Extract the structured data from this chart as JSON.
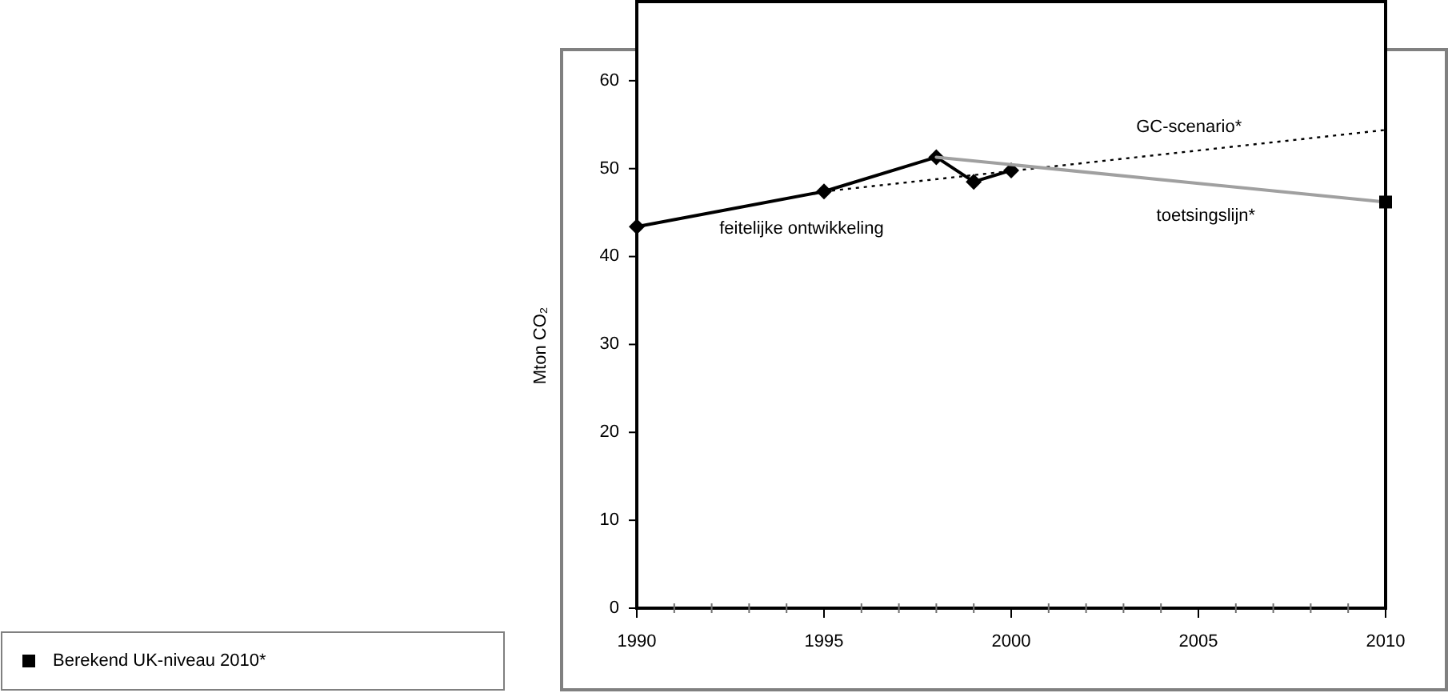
{
  "chart_data": {
    "type": "line",
    "ylabel": "Mton CO₂",
    "xlim": [
      1990,
      2010
    ],
    "xticks": [
      1990,
      {
        "value": 1991,
        "label": null
      },
      {
        "value": 1992,
        "label": null
      },
      {
        "value": 1993,
        "label": null
      },
      {
        "value": 1994,
        "label": null
      },
      1995,
      {
        "value": 1996,
        "label": null
      },
      {
        "value": 1997,
        "label": null
      },
      {
        "value": 1998,
        "label": null
      },
      {
        "value": 1999,
        "label": null
      },
      2000,
      {
        "value": 2001,
        "label": null
      },
      {
        "value": 2002,
        "label": null
      },
      {
        "value": 2003,
        "label": null
      },
      {
        "value": 2004,
        "label": null
      },
      2005,
      {
        "value": 2006,
        "label": null
      },
      {
        "value": 2007,
        "label": null
      },
      {
        "value": 2008,
        "label": null
      },
      {
        "value": 2009,
        "label": null
      },
      2010
    ],
    "ylim": [
      0,
      69
    ],
    "yticks": [
      0,
      10,
      20,
      30,
      40,
      50,
      60
    ],
    "legend": "bottom left",
    "series": [
      {
        "name": "feitelijke ontwikkeling",
        "color": "#000000",
        "marker": "diamond",
        "line_style": "solid",
        "x": [
          1990,
          1995,
          1998,
          1999,
          2000
        ],
        "values": [
          43.4,
          47.4,
          51.3,
          48.5,
          49.8
        ]
      },
      {
        "name": "GC-scenario*",
        "color": "#000000",
        "marker": "none",
        "line_style": "dotted",
        "x": [
          1995,
          2010
        ],
        "values": [
          47.4,
          54.4
        ]
      },
      {
        "name": "toetsingslijn*",
        "color": "#a0a0a0",
        "marker": "none",
        "line_style": "solid",
        "x": [
          1998,
          2010
        ],
        "values": [
          51.3,
          46.2
        ]
      },
      {
        "type": "scatter",
        "name": "Berekend UK-niveau 2010*",
        "color": "#000000",
        "marker": "square",
        "x": [
          2010
        ],
        "values": [
          46.2
        ]
      }
    ]
  }
}
